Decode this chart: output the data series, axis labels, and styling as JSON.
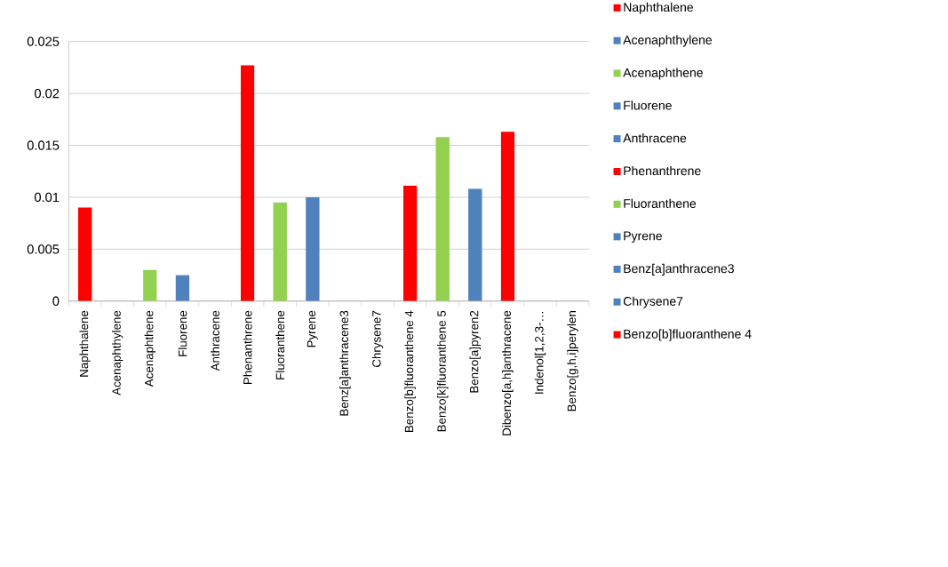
{
  "chart_data": {
    "type": "bar",
    "categories": [
      "Naphthalene",
      "Acenaphthylene",
      "Acenaphthene",
      "Fluorene",
      "Anthracene",
      "Phenanthrene",
      "Fluoranthene",
      "Pyrene",
      "Benz[a]anthracene3",
      "Chrysene7",
      "Benzo[b]fluoranthene 4",
      "Benzo[k]fluoranthene 5",
      "Benzo[a]pyren2",
      "Dibenzo[a,h]anthracene",
      "Indenol[1,2,3-…",
      "Benzo[g,h,i]perylen"
    ],
    "series": [
      {
        "name": "Naphthalene",
        "color": "#ff0000",
        "values": [
          0.009,
          null,
          null,
          null,
          null,
          null,
          null,
          null,
          null,
          null,
          null,
          null,
          null,
          null,
          null,
          null
        ]
      },
      {
        "name": "Acenaphthylene",
        "color": "#4f81bd",
        "values": [
          null,
          0,
          null,
          null,
          null,
          null,
          null,
          null,
          null,
          null,
          null,
          null,
          null,
          null,
          null,
          null
        ]
      },
      {
        "name": "Acenaphthene",
        "color": "#92d050",
        "values": [
          null,
          null,
          0.003,
          null,
          null,
          null,
          null,
          null,
          null,
          null,
          null,
          null,
          null,
          null,
          null,
          null
        ]
      },
      {
        "name": "Fluorene",
        "color": "#4f81bd",
        "values": [
          null,
          null,
          null,
          0.0025,
          null,
          null,
          null,
          null,
          null,
          null,
          null,
          null,
          null,
          null,
          null,
          null
        ]
      },
      {
        "name": "Anthracene",
        "color": "#4f81bd",
        "values": [
          null,
          null,
          null,
          null,
          0,
          null,
          null,
          null,
          null,
          null,
          null,
          null,
          null,
          null,
          null,
          null
        ]
      },
      {
        "name": "Phenanthrene",
        "color": "#ff0000",
        "values": [
          null,
          null,
          null,
          null,
          null,
          0.0227,
          null,
          null,
          null,
          null,
          null,
          null,
          null,
          null,
          null,
          null
        ]
      },
      {
        "name": "Fluoranthene",
        "color": "#92d050",
        "values": [
          null,
          null,
          null,
          null,
          null,
          null,
          0.0095,
          null,
          null,
          null,
          null,
          null,
          null,
          null,
          null,
          null
        ]
      },
      {
        "name": "Pyrene",
        "color": "#4f81bd",
        "values": [
          null,
          null,
          null,
          null,
          null,
          null,
          null,
          0.01,
          null,
          null,
          null,
          null,
          null,
          null,
          null,
          null
        ]
      },
      {
        "name": "Benz[a]anthracene3",
        "color": "#4f81bd",
        "values": [
          null,
          null,
          null,
          null,
          null,
          null,
          null,
          null,
          0,
          null,
          null,
          null,
          null,
          null,
          null,
          null
        ]
      },
      {
        "name": "Chrysene7",
        "color": "#4f81bd",
        "values": [
          null,
          null,
          null,
          null,
          null,
          null,
          null,
          null,
          null,
          0,
          null,
          null,
          null,
          null,
          null,
          null
        ]
      },
      {
        "name": "Benzo[b]fluoranthene 4",
        "color": "#ff0000",
        "values": [
          null,
          null,
          null,
          null,
          null,
          null,
          null,
          null,
          null,
          null,
          0.0111,
          null,
          null,
          null,
          null,
          null
        ]
      },
      {
        "color": "#92d050",
        "values": [
          null,
          null,
          null,
          null,
          null,
          null,
          null,
          null,
          null,
          null,
          null,
          0.0158,
          null,
          null,
          null,
          null
        ]
      },
      {
        "color": "#4f81bd",
        "values": [
          null,
          null,
          null,
          null,
          null,
          null,
          null,
          null,
          null,
          null,
          null,
          null,
          0.0108,
          null,
          null,
          null
        ]
      },
      {
        "color": "#ff0000",
        "values": [
          null,
          null,
          null,
          null,
          null,
          null,
          null,
          null,
          null,
          null,
          null,
          null,
          null,
          0.0163,
          null,
          null
        ]
      },
      {
        "color": "#4f81bd",
        "values": [
          null,
          null,
          null,
          null,
          null,
          null,
          null,
          null,
          null,
          null,
          null,
          null,
          null,
          null,
          0,
          null
        ]
      },
      {
        "color": "#4f81bd",
        "values": [
          null,
          null,
          null,
          null,
          null,
          null,
          null,
          null,
          null,
          null,
          null,
          null,
          null,
          null,
          null,
          0
        ]
      }
    ],
    "ylim": [
      0,
      0.025
    ],
    "yticks": [
      0,
      0.005,
      0.01,
      0.015,
      0.02,
      0.025
    ],
    "grid": "y",
    "legend": "right"
  }
}
